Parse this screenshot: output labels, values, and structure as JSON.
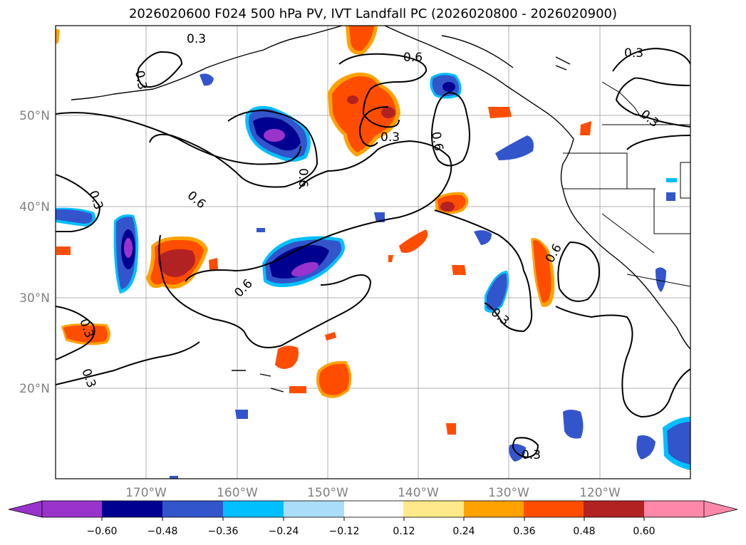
{
  "title": "2026020600 F024 500 hPa PV, IVT Landfall PC (2026020800 - 2026020900)",
  "map": {
    "lat_labels": [
      "50°N",
      "40°N",
      "30°N",
      "20°N"
    ],
    "lon_labels": [
      "170°W",
      "160°W",
      "150°W",
      "140°W",
      "130°W",
      "120°W"
    ],
    "contour_levels": [
      0.3,
      0.6
    ],
    "contour_labels": [
      "0.3",
      "0.3",
      "0.3",
      "0.6",
      "0.3",
      "0.6",
      "0.6",
      "0.6",
      "0.3",
      "0.3",
      "0.3",
      "0.6",
      "0.3",
      "0.6",
      "0.3",
      "0.3"
    ]
  },
  "colorbar": {
    "ticks": [
      "−0.60",
      "−0.48",
      "−0.36",
      "−0.24",
      "−0.12",
      "0.12",
      "0.24",
      "0.36",
      "0.48",
      "0.60"
    ],
    "colors": {
      "purple": "#9933cc",
      "navy": "#000090",
      "royal_blue": "#3355cc",
      "deep_sky": "#00bfff",
      "light_blue": "#aaddf8",
      "white": "#ffffff",
      "light_yellow": "#ffe98a",
      "orange": "#ffa200",
      "orange_red": "#ff4d00",
      "firebrick": "#b22222",
      "pink": "#ff88aa"
    }
  }
}
